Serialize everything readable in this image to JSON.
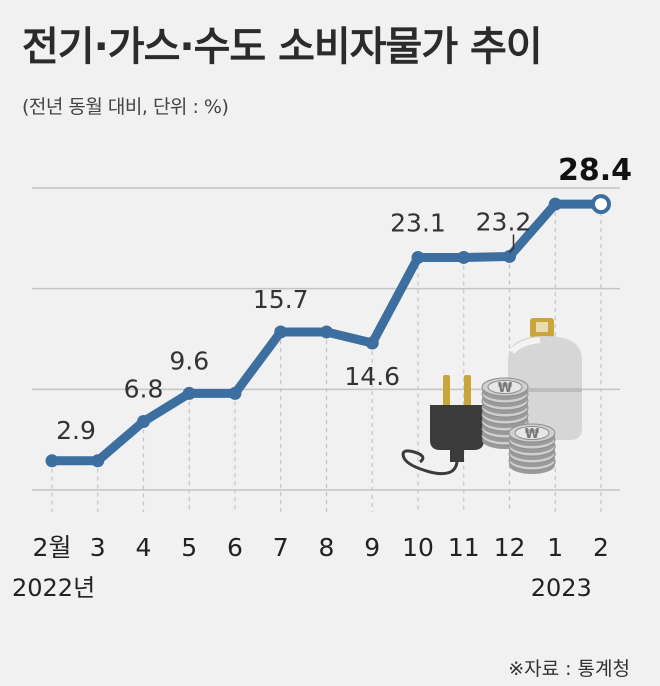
{
  "header": {
    "title": "전기·가스·수도 소비자물가 추이",
    "subtitle": "(전년 동월 대비, 단위 : %)"
  },
  "footer": {
    "source": "※자료 : 통계청"
  },
  "colors": {
    "line": "#3c6e9f",
    "grid": "#c4c4c4",
    "marker_fill": "#ffffff"
  },
  "illustration": {
    "icons": [
      "electric-plug-icon",
      "won-coin-stack-icon",
      "gas-cylinder-icon"
    ]
  },
  "chart_data": {
    "type": "line",
    "title": "전기·가스·수도 소비자물가 추이",
    "subtitle": "(전년 동월 대비, 단위 : %)",
    "categories": [
      "2월",
      "3",
      "4",
      "5",
      "6",
      "7",
      "8",
      "9",
      "10",
      "11",
      "12",
      "1",
      "2"
    ],
    "year_labels": [
      {
        "index": 0,
        "text": "2022년"
      },
      {
        "index": 11,
        "text": "2023"
      }
    ],
    "series": [
      {
        "values": [
          2.9,
          2.9,
          6.8,
          9.6,
          9.6,
          15.7,
          15.7,
          14.6,
          23.1,
          23.1,
          23.2,
          28.4,
          28.4
        ]
      }
    ],
    "data_labels": [
      {
        "index": 0,
        "text": "2.9"
      },
      {
        "index": 2,
        "text": "6.8"
      },
      {
        "index": 3,
        "text": "9.6"
      },
      {
        "index": 5,
        "text": "15.7"
      },
      {
        "index": 7,
        "text": "14.6"
      },
      {
        "index": 8,
        "text": "23.1"
      },
      {
        "index": 10,
        "text": "23.2"
      },
      {
        "index": 12,
        "text": "28.4"
      }
    ],
    "ylim": [
      0,
      30
    ],
    "grid": true,
    "xlabel": "",
    "ylabel": ""
  }
}
